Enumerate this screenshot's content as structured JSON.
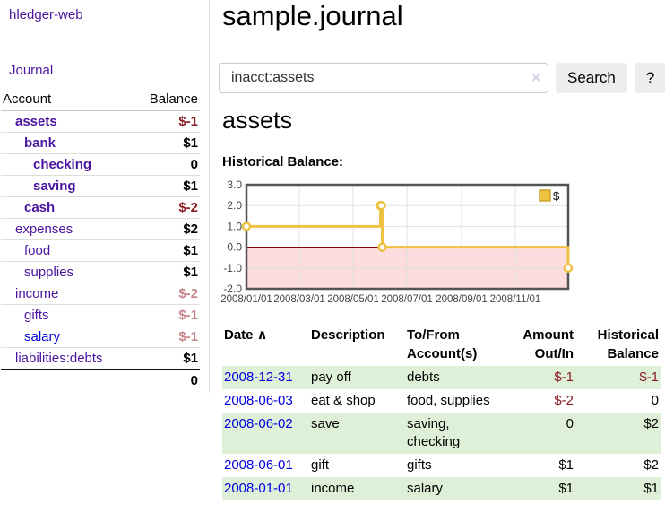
{
  "app": {
    "title": "hledger-web",
    "nav": {
      "journal": "Journal"
    }
  },
  "sidebar": {
    "accounts_table": {
      "headers": {
        "account": "Account",
        "balance": "Balance"
      },
      "rows": [
        {
          "name": "assets",
          "balance": "$-1",
          "depth": 1,
          "bold": true,
          "name_color": "purple",
          "balance_style": "negative"
        },
        {
          "name": "bank",
          "balance": "$1",
          "depth": 2,
          "bold": true,
          "name_color": "purple",
          "balance_style": "normal"
        },
        {
          "name": "checking",
          "balance": "0",
          "depth": 3,
          "bold": true,
          "name_color": "purple",
          "balance_style": "normal"
        },
        {
          "name": "saving",
          "balance": "$1",
          "depth": 3,
          "bold": true,
          "name_color": "purple",
          "balance_style": "normal"
        },
        {
          "name": "cash",
          "balance": "$-2",
          "depth": 2,
          "bold": true,
          "name_color": "purple",
          "balance_style": "negative"
        },
        {
          "name": "expenses",
          "balance": "$2",
          "depth": 1,
          "bold": false,
          "name_color": "purple",
          "balance_style": "normal"
        },
        {
          "name": "food",
          "balance": "$1",
          "depth": 2,
          "bold": false,
          "name_color": "purple",
          "balance_style": "normal"
        },
        {
          "name": "supplies",
          "balance": "$1",
          "depth": 2,
          "bold": false,
          "name_color": "purple",
          "balance_style": "normal"
        },
        {
          "name": "income",
          "balance": "$-2",
          "depth": 1,
          "bold": false,
          "name_color": "purple",
          "balance_style": "negative-dim"
        },
        {
          "name": "gifts",
          "balance": "$-1",
          "depth": 2,
          "bold": false,
          "name_color": "purple",
          "balance_style": "negative-dim"
        },
        {
          "name": "salary",
          "balance": "$-1",
          "depth": 2,
          "bold": false,
          "name_color": "blue",
          "balance_style": "negative-dim"
        },
        {
          "name": "liabilities:debts",
          "balance": "$1",
          "depth": 1,
          "bold": false,
          "name_color": "purple",
          "balance_style": "normal"
        }
      ],
      "total": "0"
    }
  },
  "main": {
    "title": "sample.journal",
    "search": {
      "value": "inacct:assets",
      "clear_label": "×",
      "button_label": "Search",
      "help_label": "?"
    },
    "account_heading": "assets",
    "chart_label": "Historical Balance:",
    "register": {
      "headers": {
        "date": "Date",
        "sort_icon": "∧",
        "description": "Description",
        "accounts": "To/From\nAccount(s)",
        "amount": "Amount\nOut/In",
        "balance": "Historical\nBalance"
      },
      "rows": [
        {
          "date": "2008-12-31",
          "description": "pay off",
          "accounts": "debts",
          "amount": "$-1",
          "amount_negative": true,
          "balance": "$-1",
          "balance_negative": true
        },
        {
          "date": "2008-06-03",
          "description": "eat & shop",
          "accounts": "food, supplies",
          "amount": "$-2",
          "amount_negative": true,
          "balance": "0",
          "balance_negative": false
        },
        {
          "date": "2008-06-02",
          "description": "save",
          "accounts": "saving,\nchecking",
          "amount": "0",
          "amount_negative": false,
          "balance": "$2",
          "balance_negative": false
        },
        {
          "date": "2008-06-01",
          "description": "gift",
          "accounts": "gifts",
          "amount": "$1",
          "amount_negative": false,
          "balance": "$2",
          "balance_negative": false
        },
        {
          "date": "2008-01-01",
          "description": "income",
          "accounts": "salary",
          "amount": "$1",
          "amount_negative": false,
          "balance": "$1",
          "balance_negative": false
        }
      ]
    }
  },
  "chart_data": {
    "type": "line",
    "title": "Historical Balance:",
    "step": true,
    "series": [
      {
        "name": "$",
        "color": "#edc240",
        "points": [
          [
            "2008-01-01",
            1
          ],
          [
            "2008-06-01",
            2
          ],
          [
            "2008-06-02",
            2
          ],
          [
            "2008-06-03",
            0
          ],
          [
            "2008-12-31",
            -1
          ]
        ]
      }
    ],
    "x_range": [
      "2008-01-01",
      "2008-12-31"
    ],
    "x_ticks": [
      {
        "date": "2008-01-01",
        "label": "2008/01/01"
      },
      {
        "date": "2008-03-01",
        "label": "2008/03/01"
      },
      {
        "date": "2008-05-01",
        "label": "2008/05/01"
      },
      {
        "date": "2008-07-01",
        "label": "2008/07/01"
      },
      {
        "date": "2008-09-01",
        "label": "2008/09/01"
      },
      {
        "date": "2008-11-01",
        "label": "2008/11/01"
      }
    ],
    "y_ticks": [
      "3.0",
      "2.0",
      "1.0",
      "0.0",
      "-1.0",
      "-2.0"
    ],
    "ylim": [
      -2,
      3
    ],
    "grid": true,
    "legend": {
      "label": "$",
      "position": "top-right"
    },
    "negative_region": {
      "below": 0,
      "fill": "#fcdcdc",
      "line_color": "#8b0000"
    },
    "border_color": "#545454",
    "gridline_color": "#e0e0e0"
  },
  "colors": {
    "link_purple": "#4a14a0",
    "link_blue": "#0000e0",
    "negative": "#8b1c24",
    "negative_dim": "#c4858b",
    "row_stripe": "#dff0d8",
    "chart_line": "#edc240"
  }
}
